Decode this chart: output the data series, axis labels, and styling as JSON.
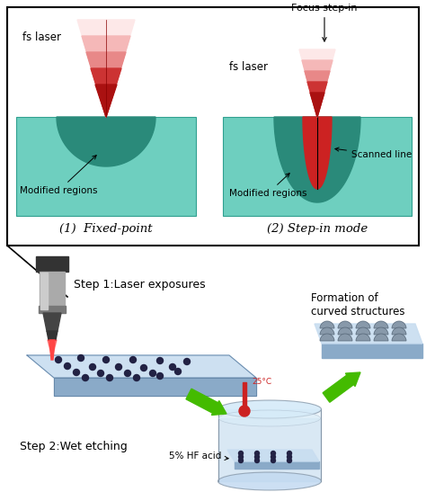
{
  "bg_color": "#ffffff",
  "teal_bg": "#6ecfbf",
  "dark_teal": "#2a8a7a",
  "laser_colors": [
    "#fde8e8",
    "#f5b8b8",
    "#e88888",
    "#cc3333",
    "#aa1111"
  ],
  "green_arrow": "#44bb00",
  "glass_top": "#c8ddf0",
  "glass_side": "#8aaac8",
  "glass_edge": "#6688aa",
  "dot_color": "#222244",
  "dome_color": "#8899aa",
  "dome_edge": "#556677",
  "beaker_fill": "#d8e8f0",
  "beaker_edge": "#8899aa",
  "tool_body": "#999999",
  "tool_dark": "#555566",
  "red_beam": "#ee3333",
  "thermo_red": "#cc2222",
  "label1": "(1)  Fixed-point",
  "label2": "(2) Step-in mode",
  "step1": "Step 1:Laser exposures",
  "step2": "Step 2:Wet etching",
  "hf_acid": "5% HF acid",
  "focus": "Focus step-in",
  "fslaser": "fs laser",
  "modregions": "Modified regions",
  "scanned": "Scanned line",
  "formation1": "Formation of",
  "formation2": "curved structures",
  "temp": "25°C"
}
